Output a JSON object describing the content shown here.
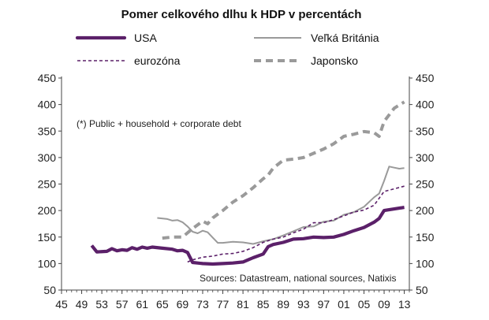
{
  "chart_data": {
    "type": "line",
    "title": "Pomer celkového dlhu k HDP v percentách",
    "note": "(*) Public + household + corporate debt",
    "source": "Sources: Datastream, national sources, Natixis",
    "xlim": [
      1945,
      2014
    ],
    "ylim": [
      50,
      450
    ],
    "x_ticks": [
      1945,
      1949,
      1953,
      1957,
      1961,
      1965,
      1969,
      1973,
      1977,
      1981,
      1985,
      1989,
      1993,
      1997,
      2001,
      2005,
      2009,
      2013
    ],
    "x_tick_labels": [
      "45",
      "49",
      "53",
      "57",
      "61",
      "65",
      "69",
      "73",
      "77",
      "81",
      "85",
      "89",
      "93",
      "97",
      "01",
      "05",
      "09",
      "13"
    ],
    "y_ticks": [
      50,
      100,
      150,
      200,
      250,
      300,
      350,
      400,
      450
    ],
    "y_tick_labels": [
      "50",
      "100",
      "150",
      "200",
      "250",
      "300",
      "350",
      "400",
      "450"
    ],
    "legend_position": "top",
    "series": [
      {
        "name": "USA",
        "color": "#5b2069",
        "style": "solid-thick",
        "x": [
          1951,
          1952,
          1954,
          1955,
          1956,
          1957,
          1958,
          1959,
          1960,
          1961,
          1962,
          1963,
          1965,
          1967,
          1968,
          1969,
          1970,
          1971,
          1972,
          1973,
          1975,
          1977,
          1979,
          1981,
          1982,
          1983,
          1985,
          1986,
          1987,
          1989,
          1991,
          1993,
          1995,
          1997,
          1999,
          2001,
          2003,
          2005,
          2007,
          2008,
          2009,
          2011,
          2013
        ],
        "y": [
          134,
          122,
          123,
          128,
          124,
          126,
          125,
          130,
          127,
          131,
          129,
          131,
          129,
          127,
          124,
          125,
          121,
          102,
          101,
          100,
          99,
          100,
          101,
          103,
          107,
          111,
          118,
          132,
          136,
          140,
          146,
          147,
          150,
          149,
          150,
          155,
          162,
          168,
          178,
          185,
          200,
          203,
          206
        ]
      },
      {
        "name": "eurozóna",
        "color": "#5b2069",
        "style": "dashed",
        "x": [
          1970,
          1971,
          1973,
          1975,
          1977,
          1979,
          1981,
          1983,
          1985,
          1987,
          1989,
          1991,
          1993,
          1995,
          1997,
          1999,
          2001,
          2003,
          2005,
          2007,
          2009,
          2011,
          2013
        ],
        "y": [
          103,
          107,
          112,
          114,
          118,
          119,
          123,
          130,
          140,
          146,
          150,
          158,
          165,
          177,
          177,
          183,
          190,
          197,
          201,
          210,
          236,
          241,
          246
        ]
      },
      {
        "name": "Veľká Británia",
        "color": "#9a9a9a",
        "style": "solid-thin",
        "x": [
          1964,
          1966,
          1967,
          1968,
          1969,
          1970,
          1971,
          1972,
          1973,
          1974,
          1975,
          1976,
          1977,
          1979,
          1981,
          1983,
          1985,
          1987,
          1989,
          1991,
          1993,
          1995,
          1997,
          1999,
          2001,
          2003,
          2005,
          2007,
          2008,
          2009,
          2010,
          2011,
          2012,
          2013
        ],
        "y": [
          186,
          184,
          181,
          182,
          178,
          170,
          160,
          157,
          162,
          159,
          149,
          139,
          139,
          141,
          140,
          137,
          142,
          146,
          153,
          161,
          169,
          170,
          179,
          181,
          192,
          197,
          207,
          225,
          232,
          256,
          283,
          281,
          279,
          280
        ]
      },
      {
        "name": "Japonsko",
        "color": "#9a9a9a",
        "style": "dashed-thick",
        "x": [
          1965,
          1967,
          1969,
          1970,
          1971,
          1973,
          1974,
          1975,
          1977,
          1979,
          1981,
          1983,
          1985,
          1986,
          1987,
          1989,
          1991,
          1993,
          1995,
          1997,
          1999,
          2001,
          2003,
          2005,
          2007,
          2008,
          2009,
          2011,
          2013
        ],
        "y": [
          148,
          150,
          150,
          158,
          166,
          180,
          175,
          186,
          200,
          216,
          228,
          243,
          260,
          267,
          280,
          295,
          297,
          300,
          308,
          316,
          326,
          340,
          344,
          349,
          347,
          340,
          368,
          393,
          405
        ]
      }
    ]
  }
}
